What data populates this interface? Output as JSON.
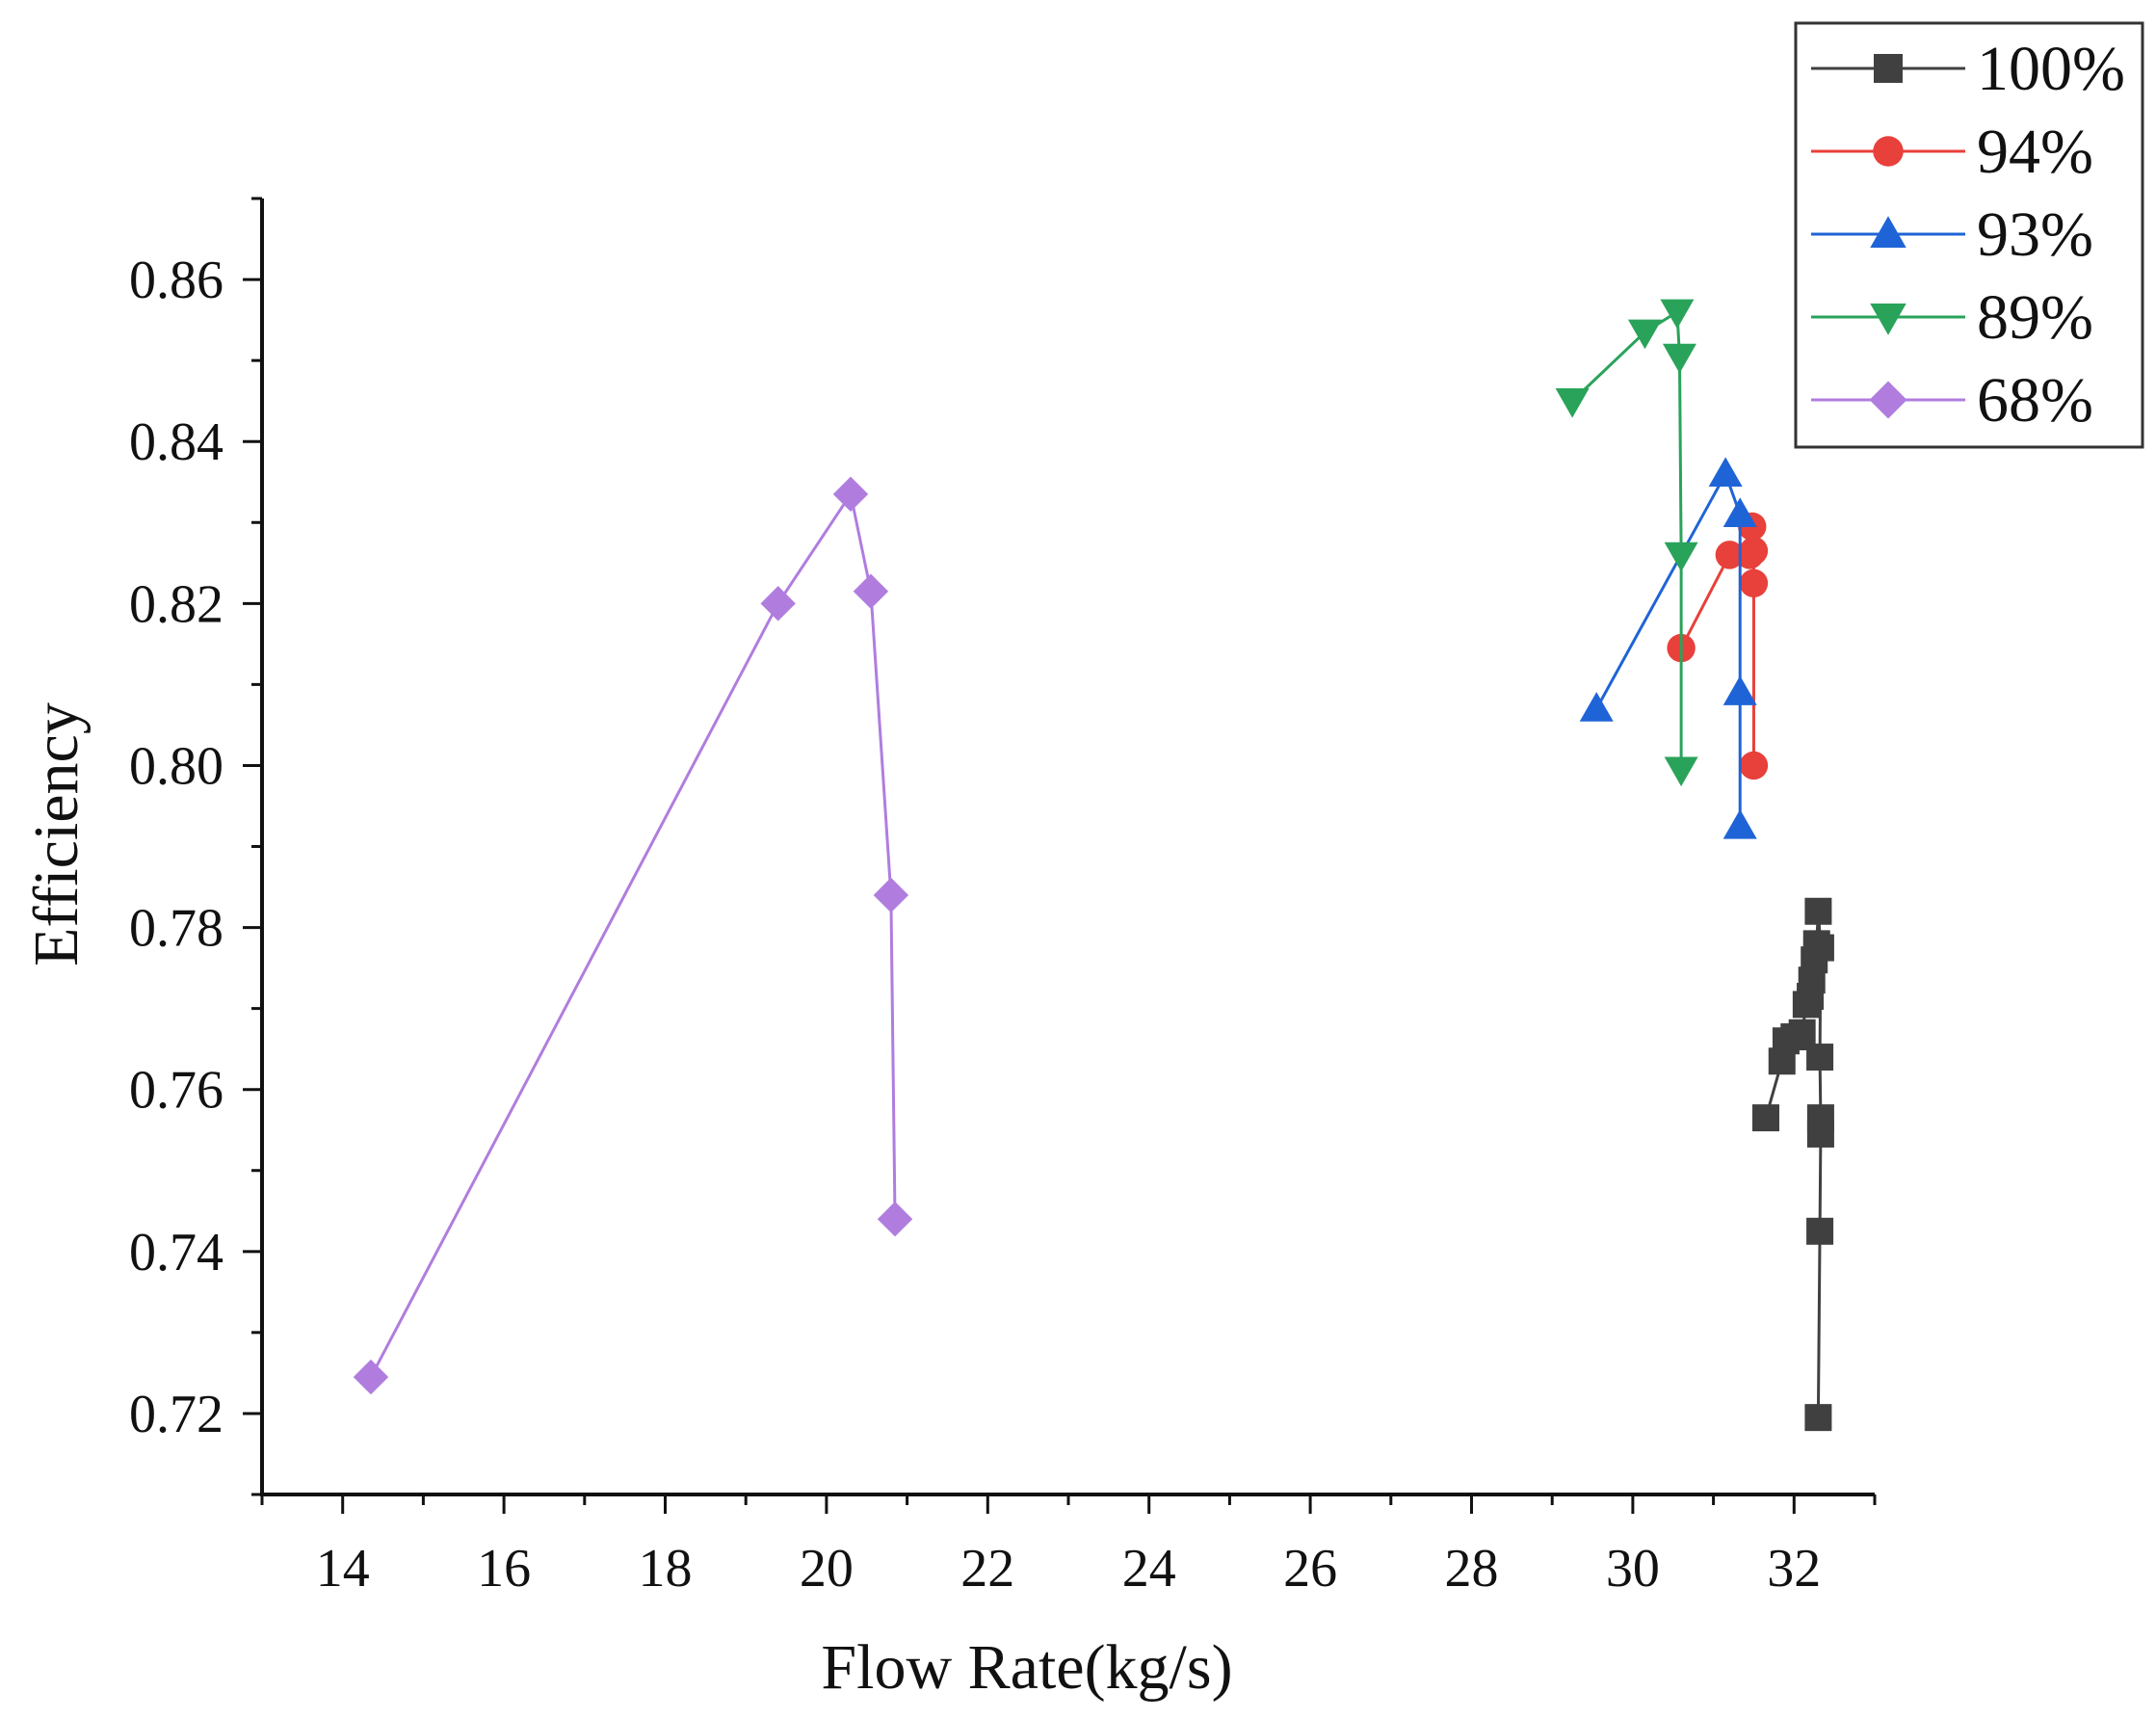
{
  "chart_data": {
    "type": "line",
    "title": "",
    "xlabel": "Flow Rate(kg/s)",
    "ylabel": "Efficiency",
    "xlim": [
      13,
      33
    ],
    "ylim": [
      0.71,
      0.87
    ],
    "xticks": [
      "14",
      "16",
      "18",
      "20",
      "22",
      "24",
      "26",
      "28",
      "30",
      "32"
    ],
    "yticks": [
      "0.72",
      "0.74",
      "0.76",
      "0.78",
      "0.80",
      "0.82",
      "0.84",
      "0.86"
    ],
    "grid": false,
    "legend_position": "top-right",
    "series": [
      {
        "name": "100%",
        "color": "#404040",
        "marker": "square",
        "x": [
          32.3,
          32.32,
          32.33,
          32.33,
          32.32,
          32.33,
          32.3,
          32.28,
          32.25,
          32.22,
          32.2,
          32.15,
          32.1,
          32.0,
          31.9,
          31.85,
          31.65
        ],
        "y": [
          0.7195,
          0.7425,
          0.7545,
          0.7565,
          0.764,
          0.7775,
          0.782,
          0.778,
          0.776,
          0.7735,
          0.7715,
          0.7705,
          0.767,
          0.7665,
          0.766,
          0.7635,
          0.7565
        ]
      },
      {
        "name": "94%",
        "color": "#e8403a",
        "marker": "circle",
        "x": [
          31.5,
          31.5,
          31.5,
          31.48,
          31.45,
          31.2,
          30.6
        ],
        "y": [
          0.8,
          0.8225,
          0.8265,
          0.8295,
          0.826,
          0.826,
          0.8145
        ]
      },
      {
        "name": "93%",
        "color": "#1f64d6",
        "marker": "triangle-up",
        "x": [
          31.33,
          31.33,
          31.33,
          31.15,
          29.55
        ],
        "y": [
          0.7925,
          0.809,
          0.831,
          0.836,
          0.807
        ]
      },
      {
        "name": "89%",
        "color": "#2aa35a",
        "marker": "triangle-down",
        "x": [
          30.6,
          30.6,
          30.58,
          30.55,
          30.15,
          29.25
        ],
        "y": [
          0.7995,
          0.826,
          0.8505,
          0.856,
          0.8535,
          0.845
        ]
      },
      {
        "name": "68%",
        "color": "#b07ddf",
        "marker": "diamond",
        "x": [
          14.35,
          19.4,
          20.3,
          20.55,
          20.8,
          20.85
        ],
        "y": [
          0.7245,
          0.82,
          0.8335,
          0.8215,
          0.784,
          0.744
        ]
      }
    ]
  }
}
